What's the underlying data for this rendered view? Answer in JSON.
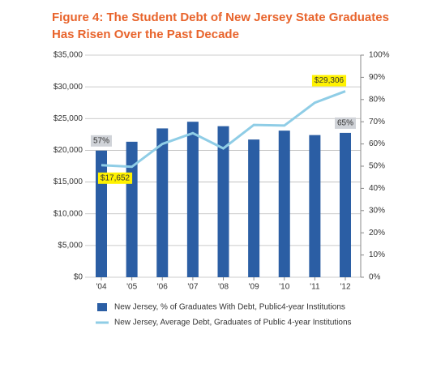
{
  "chart_data": {
    "type": "combo",
    "title": [
      "Figure 4: The Student Debt of New Jersey State Graduates",
      "Has Risen Over the Past Decade"
    ],
    "categories": [
      "'04",
      "'05",
      "'06",
      "'07",
      "'08",
      "'09",
      "'10",
      "'11",
      "'12"
    ],
    "series": [
      {
        "name": "New Jersey, % of Graduates With Debt, Public4-year Institutions",
        "type": "bar",
        "axis": "y2",
        "color": "#2b5ea4",
        "values": [
          57,
          61,
          67,
          70,
          68,
          62,
          66,
          64,
          65
        ],
        "value_labels": [
          "57%",
          null,
          null,
          null,
          null,
          null,
          null,
          null,
          "65%"
        ]
      },
      {
        "name": "New Jersey, Average Debt, Graduates of Public 4-year Institutions",
        "type": "line",
        "color": "#8fcde6",
        "values": [
          17652,
          17400,
          21000,
          22700,
          20300,
          24000,
          23900,
          27500,
          29306
        ],
        "value_labels": [
          "$17,652",
          null,
          null,
          null,
          null,
          null,
          null,
          null,
          "$29,306"
        ]
      }
    ],
    "ylim": [
      0,
      35000
    ],
    "yticks": [
      {
        "value": 0,
        "label": "$0"
      },
      {
        "value": 5000,
        "label": "$5,000"
      },
      {
        "value": 10000,
        "label": "$10,000"
      },
      {
        "value": 15000,
        "label": "$15,000"
      },
      {
        "value": 20000,
        "label": "$20,000"
      },
      {
        "value": 25000,
        "label": "$25,000"
      },
      {
        "value": 30000,
        "label": "$30,000"
      },
      {
        "value": 35000,
        "label": "$35,000"
      }
    ],
    "y2lim": [
      0,
      100
    ],
    "y2ticks": [
      {
        "value": 0,
        "label": "0%"
      },
      {
        "value": 10,
        "label": "10%"
      },
      {
        "value": 20,
        "label": "20%"
      },
      {
        "value": 30,
        "label": "30%"
      },
      {
        "value": 40,
        "label": "40%"
      },
      {
        "value": 50,
        "label": "50%"
      },
      {
        "value": 60,
        "label": "60%"
      },
      {
        "value": 70,
        "label": "70%"
      },
      {
        "value": 80,
        "label": "80%"
      },
      {
        "value": 90,
        "label": "90%"
      },
      {
        "value": 100,
        "label": "100%"
      }
    ],
    "grid": true
  }
}
